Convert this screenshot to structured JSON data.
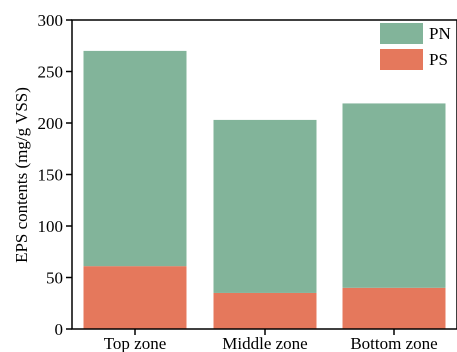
{
  "chart_data": {
    "type": "bar",
    "stacked": true,
    "title": "",
    "xlabel": "",
    "ylabel": "EPS contents (mg/g VSS)",
    "ylim": [
      0,
      300
    ],
    "yticks": [
      "0",
      "50",
      "100",
      "150",
      "200",
      "250",
      "300"
    ],
    "categories": [
      "Top zone",
      "Middle zone",
      "Bottom zone"
    ],
    "series": [
      {
        "name": "PS",
        "color": "#e5785c",
        "values": [
          61,
          35,
          40
        ]
      },
      {
        "name": "PN",
        "color": "#82b49a",
        "values": [
          209,
          168,
          179
        ]
      }
    ],
    "legend": {
      "position": "top-right",
      "entries": [
        "PN",
        "PS"
      ]
    },
    "grid": false
  }
}
